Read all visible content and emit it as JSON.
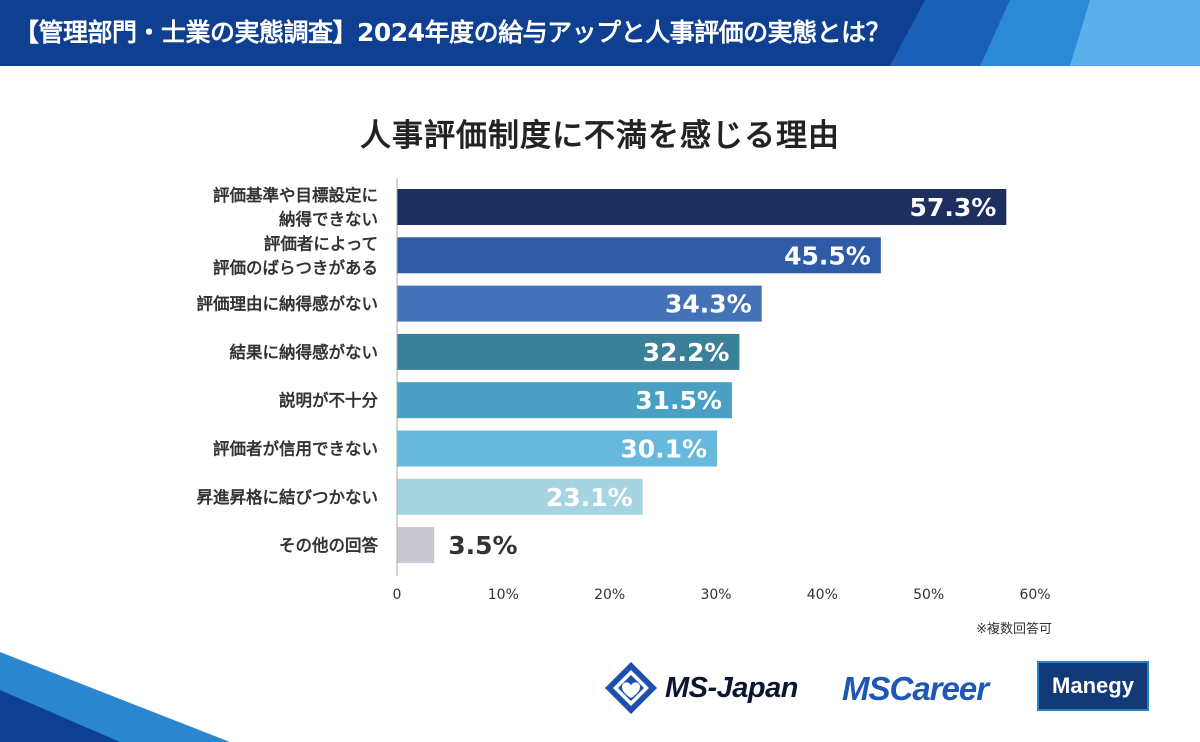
{
  "banner": {
    "title": "【管理部門・士業の実態調査】2024年度の給与アップと人事評価の実態とは？"
  },
  "chart_data": {
    "type": "bar",
    "orientation": "horizontal",
    "title": "人事評価制度に不満を感じる理由",
    "categories": [
      "評価基準や目標設定に\n納得できない",
      "評価者によって\n評価のばらつきがある",
      "評価理由に納得感がない",
      "結果に納得感がない",
      "説明が不十分",
      "評価者が信用できない",
      "昇進昇格に結びつかない",
      "その他の回答"
    ],
    "values": [
      57.3,
      45.5,
      34.3,
      32.2,
      31.5,
      30.1,
      23.1,
      3.5
    ],
    "value_labels": [
      "57.3%",
      "45.5%",
      "34.3%",
      "32.2%",
      "31.5%",
      "30.1%",
      "23.1%",
      "3.5%"
    ],
    "bar_colors": [
      "#1c2f5e",
      "#2e5aa6",
      "#4472b8",
      "#3b8099",
      "#4aa0c4",
      "#66b8dc",
      "#a6d4e0",
      "#c9c9cf"
    ],
    "label_colors": [
      "#ffffff",
      "#ffffff",
      "#ffffff",
      "#ffffff",
      "#ffffff",
      "#ffffff",
      "#ffffff",
      "#333333"
    ],
    "xlim": [
      0,
      60
    ],
    "xticks": [
      "0",
      "10%",
      "20%",
      "30%",
      "40%",
      "50%",
      "60%"
    ],
    "xtick_values": [
      0,
      10,
      20,
      30,
      40,
      50,
      60
    ],
    "grid": false
  },
  "note": "※複数回答可",
  "logos": {
    "msjapan": "MS-Japan",
    "mscareer": "MSCareer",
    "manegy": "Manegy"
  },
  "colors": {
    "banner_dark": "#0e3f91",
    "banner_light": "#2a8ad6",
    "footer_light": "#2b86d0"
  }
}
